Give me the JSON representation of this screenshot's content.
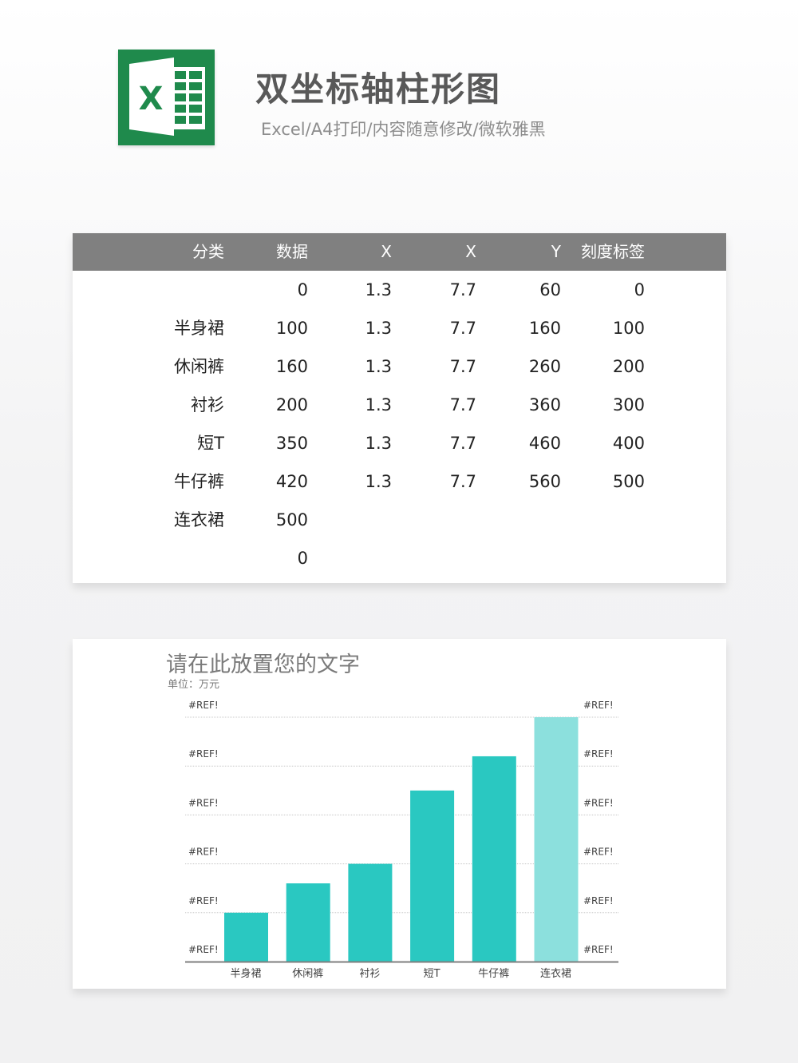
{
  "header": {
    "title": "双坐标轴柱形图",
    "subtitle": "Excel/A4打印/内容随意修改/微软雅黑",
    "logo_letter": "X",
    "logo_icon": "excel-icon",
    "logo_color": "#1f8a4c"
  },
  "table": {
    "header_color": "#808080",
    "columns": [
      "分类",
      "数据",
      "X",
      "X",
      "Y",
      "刻度标签"
    ],
    "rows": [
      [
        "",
        "0",
        "1.3",
        "7.7",
        "60",
        "0"
      ],
      [
        "半身裙",
        "100",
        "1.3",
        "7.7",
        "160",
        "100"
      ],
      [
        "休闲裤",
        "160",
        "1.3",
        "7.7",
        "260",
        "200"
      ],
      [
        "衬衫",
        "200",
        "1.3",
        "7.7",
        "360",
        "300"
      ],
      [
        "短T",
        "350",
        "1.3",
        "7.7",
        "460",
        "400"
      ],
      [
        "牛仔裤",
        "420",
        "1.3",
        "7.7",
        "560",
        "500"
      ],
      [
        "连衣裙",
        "500",
        "",
        "",
        "",
        ""
      ],
      [
        "",
        "0",
        "",
        "",
        "",
        ""
      ]
    ]
  },
  "chart": {
    "title": "请在此放置您的文字",
    "unit": "单位：万元"
  },
  "chart_data": {
    "type": "bar",
    "categories": [
      "半身裙",
      "休闲裤",
      "衬衫",
      "短T",
      "牛仔裤",
      "连衣裙"
    ],
    "values": [
      100,
      160,
      200,
      350,
      420,
      500
    ],
    "ylim": [
      0,
      500
    ],
    "left_ticks": [
      "#REF!",
      "#REF!",
      "#REF!",
      "#REF!",
      "#REF!",
      "#REF!"
    ],
    "right_ticks": [
      "#REF!",
      "#REF!",
      "#REF!",
      "#REF!",
      "#REF!",
      "#REF!"
    ],
    "grid": true,
    "bar_color": "#2ac8c1",
    "highlight_color": "#8ce0dd",
    "highlight_index": 5,
    "gridline_color": "#c8c8c8",
    "axis_color": "#7f7f7f"
  }
}
